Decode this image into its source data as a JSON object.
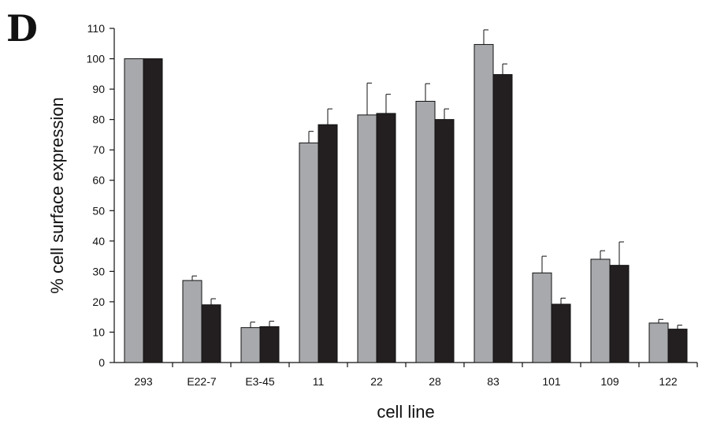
{
  "panel_label": "D",
  "chart_data": {
    "type": "bar",
    "title": "",
    "xlabel": "cell line",
    "ylabel": "% cell surface expression",
    "ylim": [
      0,
      110
    ],
    "yticks": [
      0,
      10,
      20,
      30,
      40,
      50,
      60,
      70,
      80,
      90,
      100,
      110
    ],
    "grid": false,
    "legend": "none",
    "categories": [
      "293",
      "E22-7",
      "E3-45",
      "11",
      "22",
      "28",
      "83",
      "101",
      "109",
      "122"
    ],
    "series": [
      {
        "color": "#a7a9ac",
        "values": [
          100,
          27,
          11.5,
          72.3,
          81.5,
          86,
          104.7,
          29.5,
          34,
          13
        ],
        "errors": [
          0,
          1.5,
          1.8,
          3.8,
          10.5,
          5.8,
          4.8,
          5.5,
          2.8,
          1.2
        ]
      },
      {
        "color": "#231f20",
        "values": [
          100,
          19,
          11.8,
          78.3,
          82,
          80,
          94.8,
          19.2,
          32,
          11
        ],
        "errors": [
          0,
          2.0,
          1.8,
          5.2,
          6.3,
          3.5,
          3.5,
          2.0,
          7.7,
          1.3
        ]
      }
    ]
  }
}
